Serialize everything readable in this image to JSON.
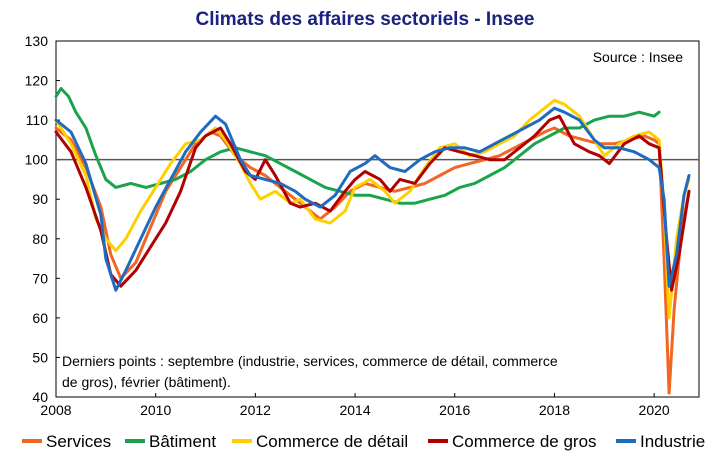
{
  "chart_data": {
    "type": "line",
    "title": "Climats des affaires sectoriels - Insee",
    "source": "Source : Insee",
    "note_lines": [
      "Derniers points : septembre (industrie, services, commerce de détail, commerce",
      "de gros), février (bâtiment)."
    ],
    "xlim": [
      2008,
      2020.9
    ],
    "ylim": [
      40,
      130
    ],
    "xticks": [
      2008,
      2010,
      2012,
      2014,
      2016,
      2018,
      2020
    ],
    "yticks": [
      40,
      50,
      60,
      70,
      80,
      90,
      100,
      110,
      120,
      130
    ],
    "reference_line": 100,
    "grid": false,
    "legend_position": "bottom",
    "series": [
      {
        "name": "Services",
        "color": "#f26522",
        "points": [
          [
            2008.0,
            108
          ],
          [
            2008.3,
            105
          ],
          [
            2008.6,
            98
          ],
          [
            2008.9,
            88
          ],
          [
            2009.1,
            76
          ],
          [
            2009.3,
            70
          ],
          [
            2009.6,
            74
          ],
          [
            2009.9,
            83
          ],
          [
            2010.2,
            92
          ],
          [
            2010.5,
            98
          ],
          [
            2010.8,
            104
          ],
          [
            2011.1,
            107
          ],
          [
            2011.3,
            106
          ],
          [
            2011.6,
            101
          ],
          [
            2011.9,
            98
          ],
          [
            2012.2,
            96
          ],
          [
            2012.5,
            93
          ],
          [
            2012.8,
            90
          ],
          [
            2013.0,
            88
          ],
          [
            2013.3,
            85
          ],
          [
            2013.6,
            88
          ],
          [
            2013.9,
            92
          ],
          [
            2014.2,
            94
          ],
          [
            2014.5,
            93
          ],
          [
            2014.8,
            92
          ],
          [
            2015.1,
            93
          ],
          [
            2015.4,
            94
          ],
          [
            2015.7,
            96
          ],
          [
            2016.0,
            98
          ],
          [
            2016.3,
            99
          ],
          [
            2016.6,
            100
          ],
          [
            2016.9,
            101
          ],
          [
            2017.2,
            103
          ],
          [
            2017.5,
            105
          ],
          [
            2017.8,
            107
          ],
          [
            2018.0,
            108
          ],
          [
            2018.3,
            106
          ],
          [
            2018.6,
            105
          ],
          [
            2018.9,
            104
          ],
          [
            2019.2,
            104
          ],
          [
            2019.5,
            105
          ],
          [
            2019.8,
            106
          ],
          [
            2020.0,
            105
          ],
          [
            2020.1,
            104
          ],
          [
            2020.2,
            75
          ],
          [
            2020.3,
            41
          ],
          [
            2020.4,
            62
          ],
          [
            2020.55,
            82
          ],
          [
            2020.7,
            92
          ]
        ]
      },
      {
        "name": "Bâtiment",
        "color": "#1aa34a",
        "points": [
          [
            2008.0,
            116
          ],
          [
            2008.1,
            118
          ],
          [
            2008.25,
            116
          ],
          [
            2008.4,
            112
          ],
          [
            2008.6,
            108
          ],
          [
            2008.8,
            101
          ],
          [
            2009.0,
            95
          ],
          [
            2009.2,
            93
          ],
          [
            2009.5,
            94
          ],
          [
            2009.8,
            93
          ],
          [
            2010.1,
            94
          ],
          [
            2010.4,
            95
          ],
          [
            2010.7,
            97
          ],
          [
            2011.0,
            100
          ],
          [
            2011.3,
            102
          ],
          [
            2011.6,
            103
          ],
          [
            2011.9,
            102
          ],
          [
            2012.2,
            101
          ],
          [
            2012.5,
            99
          ],
          [
            2012.8,
            97
          ],
          [
            2013.1,
            95
          ],
          [
            2013.4,
            93
          ],
          [
            2013.7,
            92
          ],
          [
            2014.0,
            91
          ],
          [
            2014.3,
            91
          ],
          [
            2014.6,
            90
          ],
          [
            2014.9,
            89
          ],
          [
            2015.2,
            89
          ],
          [
            2015.5,
            90
          ],
          [
            2015.8,
            91
          ],
          [
            2016.1,
            93
          ],
          [
            2016.4,
            94
          ],
          [
            2016.7,
            96
          ],
          [
            2017.0,
            98
          ],
          [
            2017.3,
            101
          ],
          [
            2017.6,
            104
          ],
          [
            2017.9,
            106
          ],
          [
            2018.2,
            108
          ],
          [
            2018.5,
            108
          ],
          [
            2018.8,
            110
          ],
          [
            2019.1,
            111
          ],
          [
            2019.4,
            111
          ],
          [
            2019.7,
            112
          ],
          [
            2020.0,
            111
          ],
          [
            2020.1,
            112
          ]
        ]
      },
      {
        "name": "Commerce de détail",
        "color": "#ffd000",
        "points": [
          [
            2008.0,
            110
          ],
          [
            2008.3,
            104
          ],
          [
            2008.6,
            96
          ],
          [
            2008.8,
            85
          ],
          [
            2009.0,
            80
          ],
          [
            2009.2,
            77
          ],
          [
            2009.4,
            80
          ],
          [
            2009.7,
            87
          ],
          [
            2010.0,
            93
          ],
          [
            2010.3,
            99
          ],
          [
            2010.6,
            104
          ],
          [
            2010.9,
            105
          ],
          [
            2011.2,
            108
          ],
          [
            2011.4,
            105
          ],
          [
            2011.7,
            99
          ],
          [
            2011.9,
            94
          ],
          [
            2012.1,
            90
          ],
          [
            2012.4,
            92
          ],
          [
            2012.7,
            89
          ],
          [
            2012.9,
            90
          ],
          [
            2013.2,
            85
          ],
          [
            2013.5,
            84
          ],
          [
            2013.8,
            87
          ],
          [
            2014.0,
            93
          ],
          [
            2014.3,
            95
          ],
          [
            2014.6,
            92
          ],
          [
            2014.8,
            89
          ],
          [
            2015.1,
            92
          ],
          [
            2015.4,
            98
          ],
          [
            2015.7,
            103
          ],
          [
            2016.0,
            104
          ],
          [
            2016.3,
            101
          ],
          [
            2016.6,
            102
          ],
          [
            2016.9,
            104
          ],
          [
            2017.2,
            106
          ],
          [
            2017.5,
            110
          ],
          [
            2017.8,
            113
          ],
          [
            2018.0,
            115
          ],
          [
            2018.2,
            114
          ],
          [
            2018.5,
            111
          ],
          [
            2018.8,
            105
          ],
          [
            2019.0,
            101
          ],
          [
            2019.3,
            104
          ],
          [
            2019.6,
            106
          ],
          [
            2019.9,
            107
          ],
          [
            2020.1,
            105
          ],
          [
            2020.2,
            88
          ],
          [
            2020.3,
            60
          ],
          [
            2020.45,
            80
          ],
          [
            2020.6,
            91
          ],
          [
            2020.7,
            95
          ]
        ]
      },
      {
        "name": "Commerce de gros",
        "color": "#b00000",
        "points": [
          [
            2008.0,
            107
          ],
          [
            2008.3,
            102
          ],
          [
            2008.6,
            93
          ],
          [
            2008.9,
            82
          ],
          [
            2009.1,
            71
          ],
          [
            2009.3,
            68
          ],
          [
            2009.6,
            72
          ],
          [
            2009.9,
            78
          ],
          [
            2010.2,
            84
          ],
          [
            2010.5,
            92
          ],
          [
            2010.8,
            103
          ],
          [
            2011.0,
            106
          ],
          [
            2011.3,
            108
          ],
          [
            2011.5,
            104
          ],
          [
            2011.8,
            97
          ],
          [
            2012.0,
            95
          ],
          [
            2012.2,
            100
          ],
          [
            2012.4,
            96
          ],
          [
            2012.7,
            89
          ],
          [
            2012.9,
            88
          ],
          [
            2013.2,
            89
          ],
          [
            2013.5,
            87
          ],
          [
            2013.8,
            92
          ],
          [
            2014.0,
            95
          ],
          [
            2014.2,
            97
          ],
          [
            2014.5,
            95
          ],
          [
            2014.7,
            92
          ],
          [
            2014.9,
            95
          ],
          [
            2015.2,
            94
          ],
          [
            2015.5,
            99
          ],
          [
            2015.8,
            103
          ],
          [
            2016.1,
            102
          ],
          [
            2016.4,
            101
          ],
          [
            2016.7,
            100
          ],
          [
            2017.0,
            100
          ],
          [
            2017.3,
            103
          ],
          [
            2017.6,
            106
          ],
          [
            2017.9,
            110
          ],
          [
            2018.1,
            111
          ],
          [
            2018.4,
            104
          ],
          [
            2018.7,
            102
          ],
          [
            2018.9,
            101
          ],
          [
            2019.1,
            99
          ],
          [
            2019.4,
            104
          ],
          [
            2019.7,
            106
          ],
          [
            2019.9,
            104
          ],
          [
            2020.1,
            103
          ],
          [
            2020.25,
            80
          ],
          [
            2020.35,
            67
          ],
          [
            2020.5,
            76
          ],
          [
            2020.7,
            92
          ]
        ]
      },
      {
        "name": "Industrie",
        "color": "#1f6bbf",
        "points": [
          [
            2008.0,
            110
          ],
          [
            2008.3,
            107
          ],
          [
            2008.6,
            99
          ],
          [
            2008.9,
            86
          ],
          [
            2009.0,
            75
          ],
          [
            2009.2,
            67
          ],
          [
            2009.4,
            72
          ],
          [
            2009.7,
            80
          ],
          [
            2010.0,
            88
          ],
          [
            2010.3,
            95
          ],
          [
            2010.6,
            102
          ],
          [
            2010.9,
            107
          ],
          [
            2011.2,
            111
          ],
          [
            2011.4,
            109
          ],
          [
            2011.7,
            100
          ],
          [
            2011.9,
            96
          ],
          [
            2012.2,
            95
          ],
          [
            2012.5,
            94
          ],
          [
            2012.8,
            92
          ],
          [
            2013.0,
            90
          ],
          [
            2013.3,
            88
          ],
          [
            2013.6,
            91
          ],
          [
            2013.9,
            97
          ],
          [
            2014.2,
            99
          ],
          [
            2014.4,
            101
          ],
          [
            2014.7,
            98
          ],
          [
            2015.0,
            97
          ],
          [
            2015.3,
            100
          ],
          [
            2015.6,
            102
          ],
          [
            2015.9,
            103
          ],
          [
            2016.2,
            103
          ],
          [
            2016.5,
            102
          ],
          [
            2016.8,
            104
          ],
          [
            2017.1,
            106
          ],
          [
            2017.4,
            108
          ],
          [
            2017.7,
            110
          ],
          [
            2018.0,
            113
          ],
          [
            2018.2,
            112
          ],
          [
            2018.5,
            110
          ],
          [
            2018.8,
            105
          ],
          [
            2019.0,
            103
          ],
          [
            2019.3,
            103
          ],
          [
            2019.6,
            102
          ],
          [
            2019.9,
            100
          ],
          [
            2020.1,
            98
          ],
          [
            2020.2,
            90
          ],
          [
            2020.3,
            68
          ],
          [
            2020.45,
            76
          ],
          [
            2020.6,
            91
          ],
          [
            2020.7,
            96
          ]
        ]
      }
    ]
  }
}
